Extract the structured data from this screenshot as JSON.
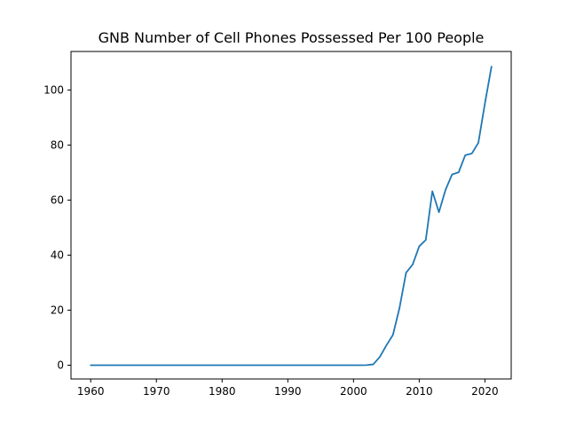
{
  "chart_data": {
    "type": "line",
    "title": "GNB Number of Cell Phones Possessed Per 100 People",
    "xlabel": "",
    "ylabel": "",
    "xlim": [
      1957,
      2024
    ],
    "ylim": [
      -5,
      114
    ],
    "xticks": [
      1960,
      1970,
      1980,
      1990,
      2000,
      2010,
      2020
    ],
    "yticks": [
      0,
      20,
      40,
      60,
      80,
      100
    ],
    "grid": false,
    "line_color": "#1f77b4",
    "series": [
      {
        "x": [
          1960,
          1961,
          1962,
          1963,
          1964,
          1965,
          1966,
          1967,
          1968,
          1969,
          1970,
          1971,
          1972,
          1973,
          1974,
          1975,
          1976,
          1977,
          1978,
          1979,
          1980,
          1981,
          1982,
          1983,
          1984,
          1985,
          1986,
          1987,
          1988,
          1989,
          1990,
          1991,
          1992,
          1993,
          1994,
          1995,
          1996,
          1997,
          1998,
          1999,
          2000,
          2001,
          2002,
          2003,
          2004,
          2005,
          2006,
          2007,
          2008,
          2009,
          2010,
          2011,
          2012,
          2013,
          2014,
          2015,
          2016,
          2017,
          2018,
          2019,
          2020,
          2021
        ],
        "values": [
          0,
          0,
          0,
          0,
          0,
          0,
          0,
          0,
          0,
          0,
          0,
          0,
          0,
          0,
          0,
          0,
          0,
          0,
          0,
          0,
          0,
          0,
          0,
          0,
          0,
          0,
          0,
          0,
          0,
          0,
          0,
          0,
          0,
          0,
          0,
          0,
          0,
          0,
          0,
          0,
          0,
          0,
          0.05,
          0.3,
          3,
          7.2,
          11,
          20.8,
          33.6,
          36.6,
          43.2,
          45.5,
          63.2,
          55.6,
          63.7,
          69.3,
          70.1,
          76.3,
          76.9,
          80.8,
          95.1,
          108.5
        ]
      }
    ]
  }
}
